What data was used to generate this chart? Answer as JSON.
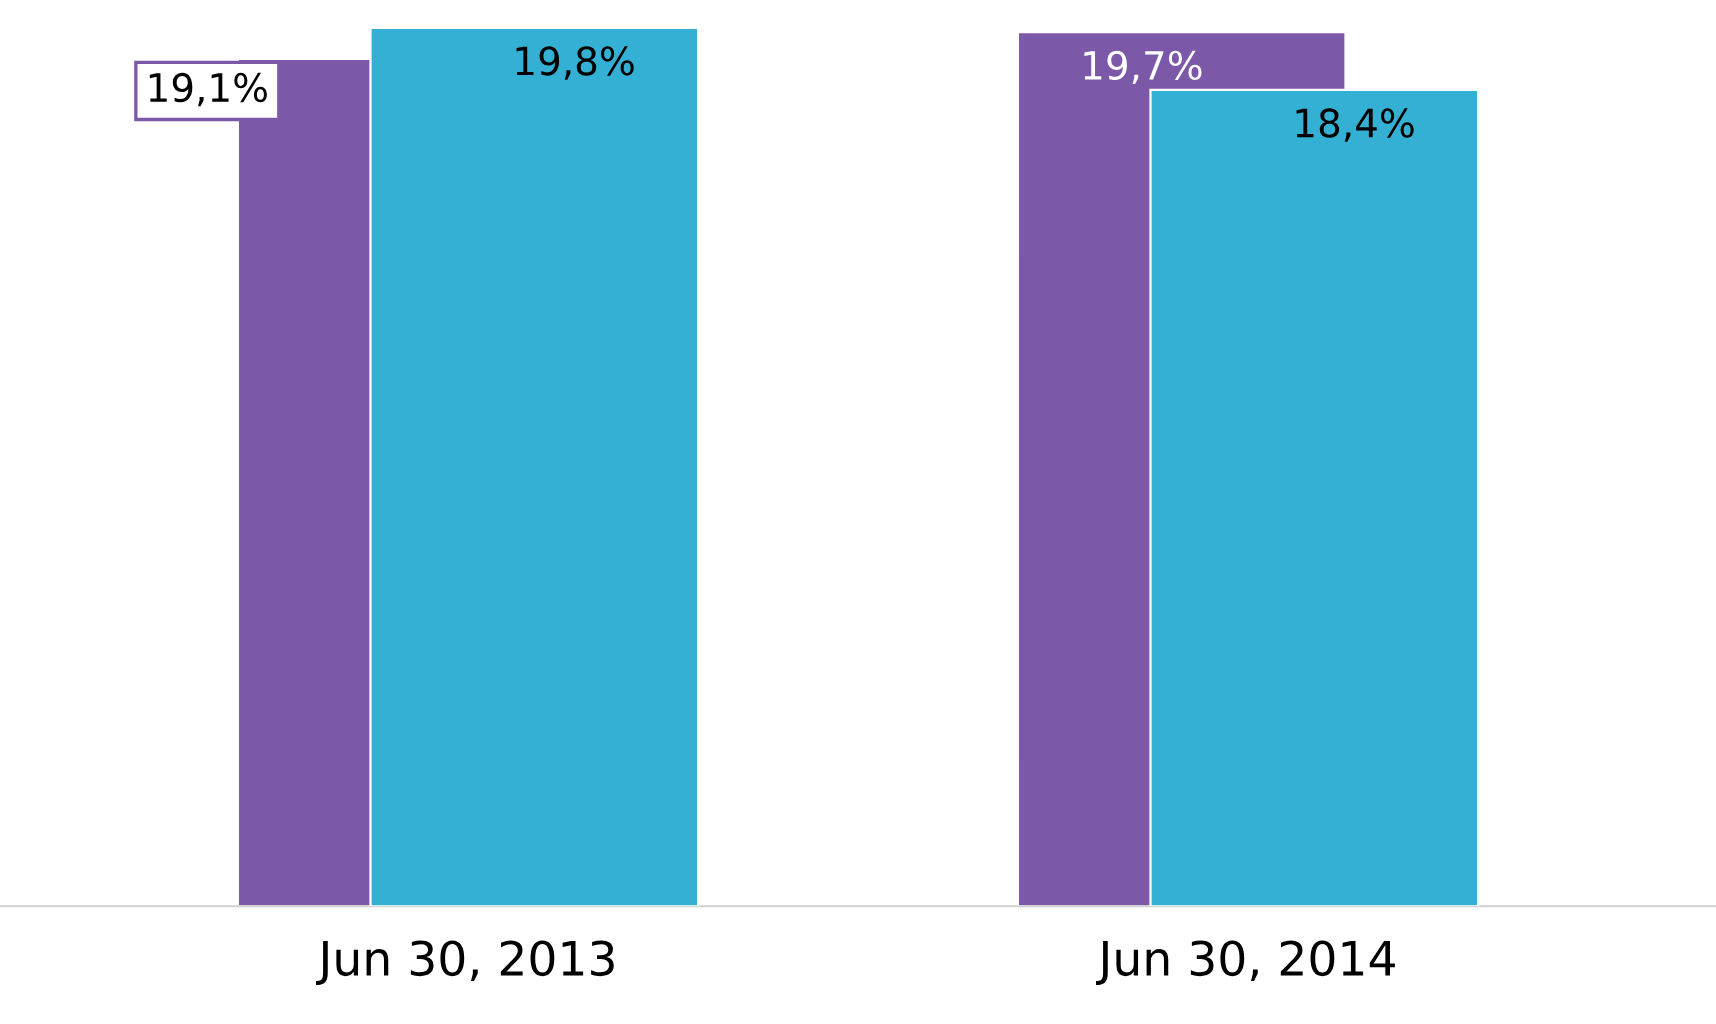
{
  "chart_data": {
    "type": "bar",
    "categories": [
      "Jun 30, 2013",
      "Jun 30, 2014"
    ],
    "series": [
      {
        "color": "#7b59a8",
        "values": [
          19.1,
          19.7
        ],
        "value_labels": [
          "19,1%",
          "19,7%"
        ]
      },
      {
        "color": "#33b0d3",
        "values": [
          19.8,
          18.4
        ],
        "value_labels": [
          "19,8%",
          "18,4%"
        ]
      }
    ],
    "tick_labels": "x",
    "grid": false,
    "legend": false
  }
}
